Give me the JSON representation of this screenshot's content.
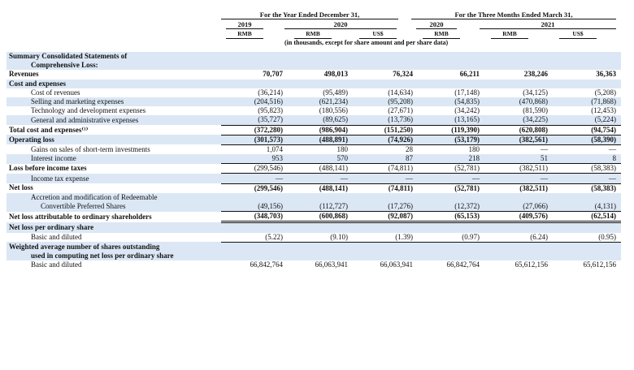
{
  "header": {
    "period_year": "For the Year Ended December 31,",
    "period_quarter": "For the Three Months Ended March 31,",
    "years": [
      "2019",
      "2020",
      "2020",
      "2021"
    ],
    "currencies": [
      "RMB",
      "RMB",
      "US$",
      "RMB",
      "RMB",
      "US$"
    ],
    "unit_note": "(in thousands, except for share amount and per share data)"
  },
  "rows": [
    {
      "label": "Summary Consolidated Statements of",
      "values": [
        "",
        "",
        "",
        "",
        "",
        ""
      ]
    },
    {
      "label": "Comprehensive Loss:",
      "values": [
        "",
        "",
        "",
        "",
        "",
        ""
      ]
    },
    {
      "label": "Revenues",
      "values": [
        "70,707",
        "498,013",
        "76,324",
        "66,211",
        "238,246",
        "36,363"
      ]
    },
    {
      "label": "Cost and expenses",
      "values": [
        "",
        "",
        "",
        "",
        "",
        ""
      ]
    },
    {
      "label": "Cost of revenues",
      "values": [
        "(36,214)",
        "(95,489)",
        "(14,634)",
        "(17,148)",
        "(34,125)",
        "(5,208)"
      ]
    },
    {
      "label": "Selling and marketing expenses",
      "values": [
        "(204,516)",
        "(621,234)",
        "(95,208)",
        "(54,835)",
        "(470,868)",
        "(71,868)"
      ]
    },
    {
      "label": "Technology and development expenses",
      "values": [
        "(95,823)",
        "(180,556)",
        "(27,671)",
        "(34,242)",
        "(81,590)",
        "(12,453)"
      ]
    },
    {
      "label": "General and administrative expenses",
      "values": [
        "(35,727)",
        "(89,625)",
        "(13,736)",
        "(13,165)",
        "(34,225)",
        "(5,224)"
      ]
    },
    {
      "label": "Total cost and expenses⁽¹⁾",
      "values": [
        "(372,280)",
        "(986,904)",
        "(151,250)",
        "(119,390)",
        "(620,808)",
        "(94,754)"
      ]
    },
    {
      "label": "Operating loss",
      "values": [
        "(301,573)",
        "(488,891)",
        "(74,926)",
        "(53,179)",
        "(382,561)",
        "(58,390)"
      ]
    },
    {
      "label": "Gains on sales of short-term investments",
      "values": [
        "1,074",
        "180",
        "28",
        "180",
        "—",
        "—"
      ]
    },
    {
      "label": "Interest income",
      "values": [
        "953",
        "570",
        "87",
        "218",
        "51",
        "8"
      ]
    },
    {
      "label": "Loss before income taxes",
      "values": [
        "(299,546)",
        "(488,141)",
        "(74,811)",
        "(52,781)",
        "(382,511)",
        "(58,383)"
      ]
    },
    {
      "label": "Income tax expense",
      "values": [
        "—",
        "—",
        "—",
        "—",
        "—",
        "—"
      ]
    },
    {
      "label": "Net loss",
      "values": [
        "(299,546)",
        "(488,141)",
        "(74,811)",
        "(52,781)",
        "(382,511)",
        "(58,383)"
      ]
    },
    {
      "label": "Accretion and modification of Redeemable",
      "values": [
        "",
        "",
        "",
        "",
        "",
        ""
      ]
    },
    {
      "label": "Convertible Preferred Shares",
      "values": [
        "(49,156)",
        "(112,727)",
        "(17,276)",
        "(12,372)",
        "(27,066)",
        "(4,131)"
      ]
    },
    {
      "label": "Net loss attributable to ordinary shareholders",
      "values": [
        "(348,703)",
        "(600,868)",
        "(92,087)",
        "(65,153)",
        "(409,576)",
        "(62,514)"
      ]
    },
    {
      "label": "Net loss per ordinary share",
      "values": [
        "",
        "",
        "",
        "",
        "",
        ""
      ]
    },
    {
      "label": "Basic and diluted",
      "values": [
        "(5.22)",
        "(9.10)",
        "(1.39)",
        "(0.97)",
        "(6.24)",
        "(0.95)"
      ]
    },
    {
      "label": "Weighted average number of shares outstanding",
      "values": [
        "",
        "",
        "",
        "",
        "",
        ""
      ]
    },
    {
      "label": "used in computing net loss per ordinary share",
      "values": [
        "",
        "",
        "",
        "",
        "",
        ""
      ]
    },
    {
      "label": "Basic and diluted",
      "values": [
        "66,842,764",
        "66,063,941",
        "66,063,941",
        "66,842,764",
        "65,612,156",
        "65,612,156"
      ]
    }
  ]
}
